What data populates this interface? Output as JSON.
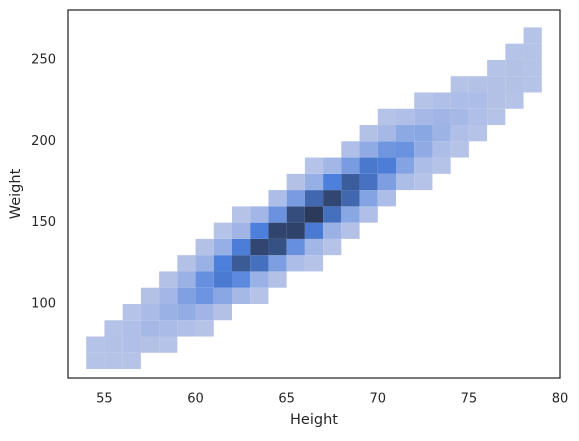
{
  "chart_data": {
    "type": "hist2d",
    "x_label": "Height",
    "y_label": "Weight",
    "xlim": [
      53.0,
      80.0
    ],
    "ylim": [
      54.5,
      280.7
    ],
    "xticks": [
      55,
      60,
      65,
      70,
      75,
      80
    ],
    "yticks": [
      100,
      150,
      200,
      250
    ],
    "x_bins": [
      54,
      55,
      56,
      57,
      58,
      59,
      60,
      61,
      62,
      63,
      64,
      65,
      66,
      67,
      68,
      69,
      70,
      71,
      72,
      73,
      74,
      75,
      76,
      77,
      78,
      79
    ],
    "y_bins": [
      60,
      70,
      80,
      90,
      100,
      110,
      120,
      130,
      140,
      150,
      160,
      170,
      180,
      190,
      200,
      210,
      220,
      230,
      240,
      250,
      260,
      270,
      280
    ],
    "colors": [
      "#b9c5e8",
      "#4d80dc",
      "#2b3a5a"
    ],
    "counts": [
      [
        1,
        1,
        0,
        0,
        0,
        0,
        0,
        0,
        0,
        0,
        0,
        0,
        0,
        0,
        0,
        0,
        0,
        0,
        0,
        0,
        0,
        0
      ],
      [
        1,
        2,
        1,
        0,
        0,
        0,
        0,
        0,
        0,
        0,
        0,
        0,
        0,
        0,
        0,
        0,
        0,
        0,
        0,
        0,
        0,
        0
      ],
      [
        1,
        3,
        3,
        1,
        0,
        0,
        0,
        0,
        0,
        0,
        0,
        0,
        0,
        0,
        0,
        0,
        0,
        0,
        0,
        0,
        0,
        0
      ],
      [
        0,
        2,
        6,
        5,
        2,
        0,
        0,
        0,
        0,
        0,
        0,
        0,
        0,
        0,
        0,
        0,
        0,
        0,
        0,
        0,
        0,
        0
      ],
      [
        0,
        1,
        5,
        10,
        7,
        2,
        0,
        0,
        0,
        0,
        0,
        0,
        0,
        0,
        0,
        0,
        0,
        0,
        0,
        0,
        0,
        0
      ],
      [
        0,
        0,
        3,
        12,
        18,
        10,
        2,
        0,
        0,
        0,
        0,
        0,
        0,
        0,
        0,
        0,
        0,
        0,
        0,
        0,
        0,
        0
      ],
      [
        0,
        0,
        1,
        8,
        24,
        26,
        10,
        2,
        0,
        0,
        0,
        0,
        0,
        0,
        0,
        0,
        0,
        0,
        0,
        0,
        0,
        0
      ],
      [
        0,
        0,
        0,
        2,
        15,
        37,
        34,
        11,
        1,
        0,
        0,
        0,
        0,
        0,
        0,
        0,
        0,
        0,
        0,
        0,
        0,
        0
      ],
      [
        0,
        0,
        0,
        0,
        6,
        29,
        52,
        35,
        8,
        1,
        0,
        0,
        0,
        0,
        0,
        0,
        0,
        0,
        0,
        0,
        0,
        0
      ],
      [
        0,
        0,
        0,
        0,
        1,
        10,
        42,
        62,
        34,
        7,
        0,
        0,
        0,
        0,
        0,
        0,
        0,
        0,
        0,
        0,
        0,
        0
      ],
      [
        0,
        0,
        0,
        0,
        0,
        2,
        19,
        57,
        63,
        25,
        4,
        0,
        0,
        0,
        0,
        0,
        0,
        0,
        0,
        0,
        0,
        0
      ],
      [
        0,
        0,
        0,
        0,
        0,
        0,
        4,
        26,
        64,
        59,
        20,
        2,
        0,
        0,
        0,
        0,
        0,
        0,
        0,
        0,
        0,
        0
      ],
      [
        0,
        0,
        0,
        0,
        0,
        0,
        1,
        7,
        37,
        68,
        46,
        11,
        1,
        0,
        0,
        0,
        0,
        0,
        0,
        0,
        0,
        0
      ],
      [
        0,
        0,
        0,
        0,
        0,
        0,
        0,
        1,
        10,
        42,
        62,
        34,
        7,
        0,
        0,
        0,
        0,
        0,
        0,
        0,
        0,
        0
      ],
      [
        0,
        0,
        0,
        0,
        0,
        0,
        0,
        0,
        2,
        15,
        46,
        51,
        20,
        3,
        0,
        0,
        0,
        0,
        0,
        0,
        0,
        0
      ],
      [
        0,
        0,
        0,
        0,
        0,
        0,
        0,
        0,
        0,
        3,
        17,
        41,
        38,
        13,
        2,
        0,
        0,
        0,
        0,
        0,
        0,
        0
      ],
      [
        0,
        0,
        0,
        0,
        0,
        0,
        0,
        0,
        0,
        0,
        4,
        19,
        35,
        23,
        6,
        1,
        0,
        0,
        0,
        0,
        0,
        0
      ],
      [
        0,
        0,
        0,
        0,
        0,
        0,
        0,
        0,
        0,
        0,
        0,
        4,
        17,
        25,
        14,
        3,
        0,
        0,
        0,
        0,
        0,
        0
      ],
      [
        0,
        0,
        0,
        0,
        0,
        0,
        0,
        0,
        0,
        0,
        0,
        1,
        4,
        13,
        15,
        6,
        1,
        0,
        0,
        0,
        0,
        0
      ],
      [
        0,
        0,
        0,
        0,
        0,
        0,
        0,
        0,
        0,
        0,
        0,
        0,
        1,
        4,
        9,
        8,
        3,
        0,
        0,
        0,
        0,
        0
      ],
      [
        0,
        0,
        0,
        0,
        0,
        0,
        0,
        0,
        0,
        0,
        0,
        0,
        0,
        1,
        3,
        6,
        4,
        1,
        0,
        0,
        0,
        0
      ],
      [
        0,
        0,
        0,
        0,
        0,
        0,
        0,
        0,
        0,
        0,
        0,
        0,
        0,
        0,
        1,
        3,
        4,
        2,
        0,
        0,
        0,
        0
      ],
      [
        0,
        0,
        0,
        0,
        0,
        0,
        0,
        0,
        0,
        0,
        0,
        0,
        0,
        0,
        0,
        1,
        2,
        2,
        1,
        0,
        0,
        0
      ],
      [
        0,
        0,
        0,
        0,
        0,
        0,
        0,
        0,
        0,
        0,
        0,
        0,
        0,
        0,
        0,
        0,
        1,
        2,
        2,
        1,
        0,
        0
      ],
      [
        0,
        0,
        0,
        0,
        0,
        0,
        0,
        0,
        0,
        0,
        0,
        0,
        0,
        0,
        0,
        0,
        0,
        1,
        1,
        1,
        1,
        0
      ]
    ]
  }
}
